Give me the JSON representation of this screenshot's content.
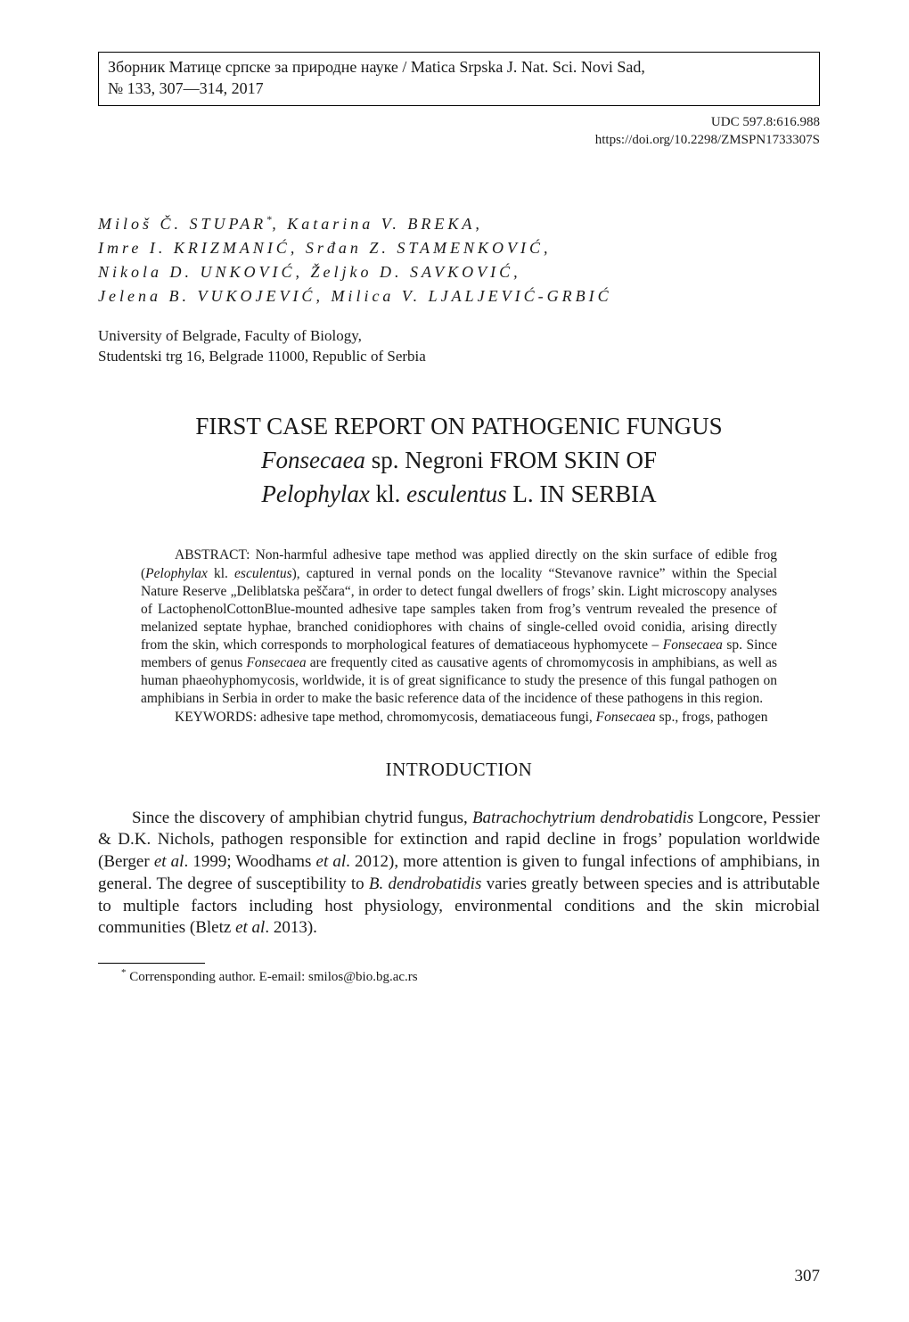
{
  "header": {
    "box_line1": "Зборник Матице српске за природне науке / Matica Srpska J. Nat. Sci. Novi Sad,",
    "box_line2": "№ 133, 307—314, 2017",
    "udc": "UDC 597.8:616.988",
    "doi": "https://doi.org/10.2298/ZMSPN1733307S"
  },
  "authors_html": "Miloš Č. STUPAR<sup>*</sup>, Katarina V. BREKA,<br>Imre I. KRIZMANIĆ, Srđan Z. STAMENKOVIĆ,<br>Nikola D. UNKOVIĆ, Željko D. SAVKOVIĆ,<br>Jelena B. VUKOJEVIĆ, Milica V. LJALJEVIĆ-GRBIĆ",
  "affiliation": {
    "line1": "University of Belgrade, Faculty of Biology,",
    "line2": "Studentski trg 16, Belgrade 11000, Republic of Serbia"
  },
  "title_html": "FIRST CASE REPORT ON PATHOGENIC FUNGUS<br><span class=\"italic\">Fonsecaea</span> sp. Negroni FROM SKIN OF<br><span class=\"italic\">Pelophylax</span> kl. <span class=\"italic\">esculentus</span> L. IN SERBIA",
  "abstract": {
    "para1_html": "ABSTRACT: Non-harmful adhesive tape method was applied directly on the skin surface of edible frog (<span class=\"italic\">Pelophylax</span> kl. <span class=\"italic\">esculentus</span>), captured in vernal ponds on the locality “Stevanove ravnice” within the Special Nature Reserve „Deliblatska peščara“, in order to detect fungal dwellers of frogs’ skin. Light microscopy analyses of LactophenolCottonBlue-mounted adhesive tape samples taken from frog’s ventrum revealed the presence of melanized septate hyphae, branched conidiophores with chains of single-celled ovoid conidia, arising directly from the skin, which corresponds to morphological features of dematiaceous hyphomycete – <span class=\"italic\">Fonsecaea</span> sp. Since members of genus <span class=\"italic\">Fonsecaea</span> are frequently cited as causative agents of chromomycosis in amphibians, as well as human phaeohyphomycosis, worldwide, it is of great significance to study the presence of this fungal pathogen on amphibians in Serbia in order to make the basic reference data of the incidence of these pathogens in this region.",
    "para2_html": "KEYWORDS: adhesive tape method, chromomycosis, dematiaceous fungi, <span class=\"italic\">Fonsecaea</span> sp., frogs, pathogen"
  },
  "section_heading": "INTRODUCTION",
  "body_para1_html": "Since the discovery of amphibian chytrid fungus, <span class=\"italic\">Batrachochytrium dendrobatidis</span> Longcore, Pessier & D.K. Nichols, pathogen responsible for extinction and rapid decline in frogs’ population worldwide (Berger <span class=\"italic\">et al</span>. 1999; Woodhams <span class=\"italic\">et al</span>. 2012), more attention is given to fungal infections of amphibians, in general. The degree of susceptibility to <span class=\"italic\">B. dendrobatidis</span> varies greatly between species and is attributable to multiple factors including host physiology, environmental conditions and the skin microbial communities (Bletz <span class=\"italic\">et al</span>. 2013).",
  "footnote_html": "<sup>*</sup> Corrensponding author. E-email: smilos@bio.bg.ac.rs",
  "page_number": "307",
  "fontsizes_pt": {
    "header_box": 18,
    "udc": 15,
    "authors": 18,
    "affiliation": 17,
    "title": 27,
    "abstract": 15.5,
    "section_heading": 21,
    "body": 19,
    "footnote": 15,
    "page_number": 19
  },
  "colors": {
    "text": "#1a1a1a",
    "background": "#ffffff",
    "rule": "#000000"
  }
}
